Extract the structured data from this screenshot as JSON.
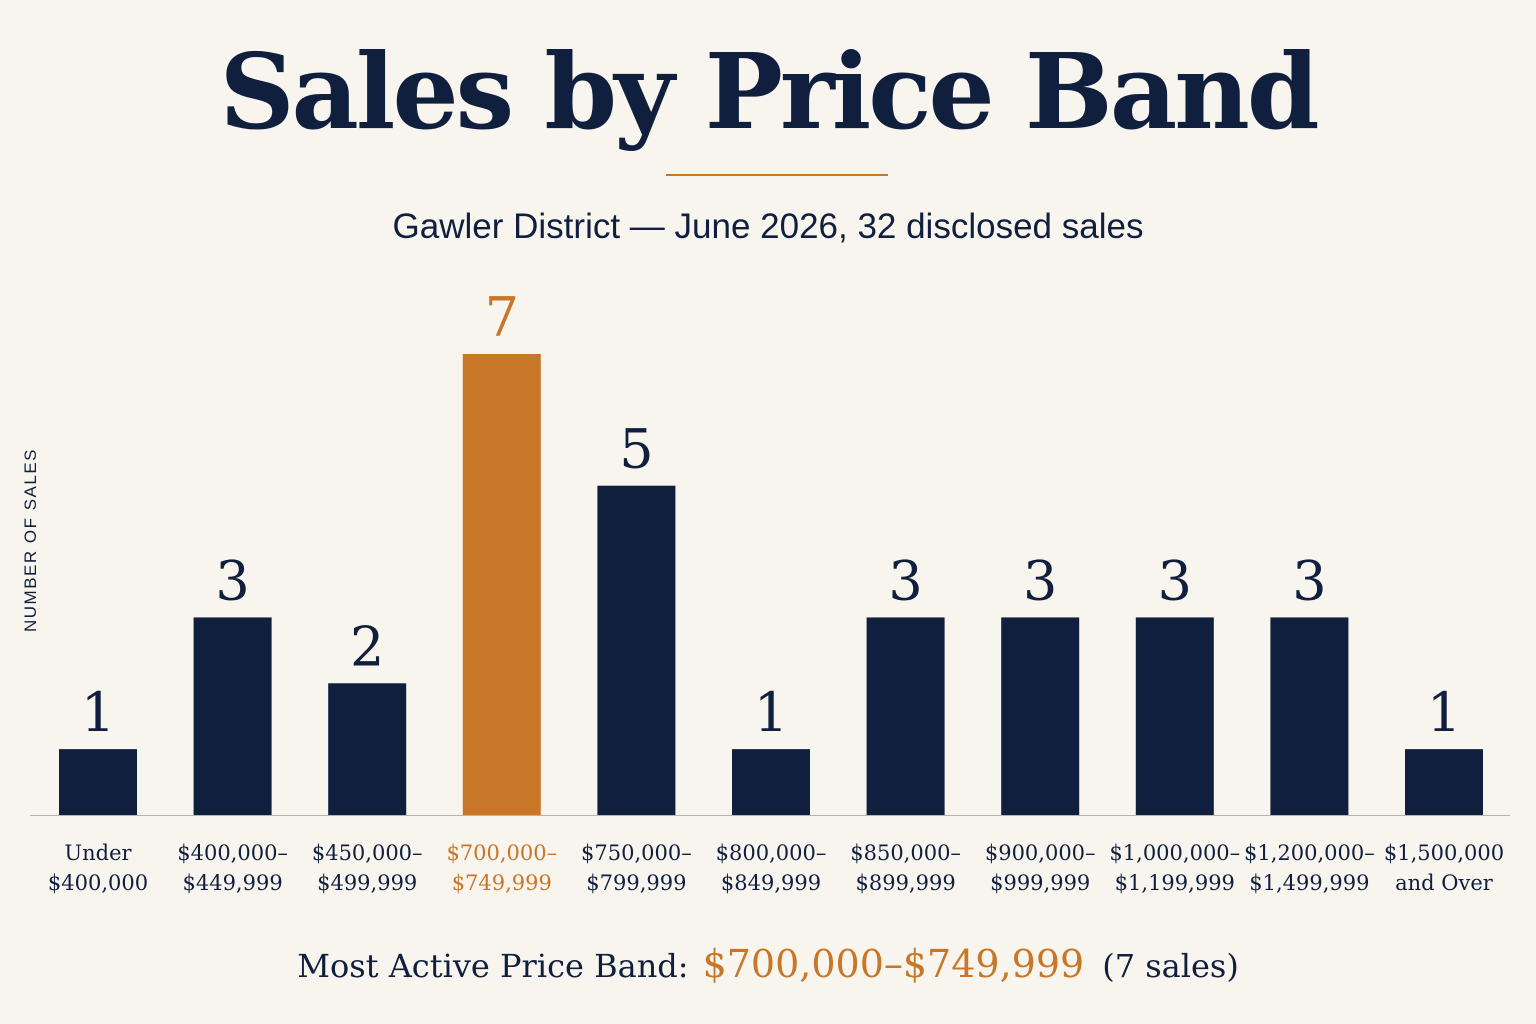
{
  "header": {
    "title": "Sales by Price Band",
    "subtitle": "Gawler District — June 2026, 32 disclosed sales"
  },
  "summary": {
    "label": "Most Active Price Band:",
    "value": "$700,000–$749,999",
    "note": "(7 sales)"
  },
  "colors": {
    "bar": "#0f1f3d",
    "highlight": "#c87628",
    "text": "#0f1f3d",
    "axis": "#b8b4ad",
    "background": "#f8f4ee"
  },
  "chart_data": {
    "type": "bar",
    "ylabel": "NUMBER OF SALES",
    "xlabel": "",
    "ylim": [
      0,
      7
    ],
    "grid": false,
    "highlight_index": 3,
    "categories": [
      [
        "Under",
        "$400,000"
      ],
      [
        "$400,000–",
        "$449,999"
      ],
      [
        "$450,000–",
        "$499,999"
      ],
      [
        "$700,000–",
        "$749,999"
      ],
      [
        "$750,000–",
        "$799,999"
      ],
      [
        "$800,000–",
        "$849,999"
      ],
      [
        "$850,000–",
        "$899,999"
      ],
      [
        "$900,000–",
        "$999,999"
      ],
      [
        "$1,000,000–",
        "$1,199,999"
      ],
      [
        "$1,200,000–",
        "$1,499,999"
      ],
      [
        "$1,500,000",
        "and Over"
      ]
    ],
    "values": [
      1,
      3,
      2,
      7,
      5,
      1,
      3,
      3,
      3,
      3,
      1
    ],
    "data_labels": [
      "1",
      "3",
      "2",
      "7",
      "5",
      "1",
      "3",
      "3",
      "3",
      "3",
      "1"
    ]
  }
}
